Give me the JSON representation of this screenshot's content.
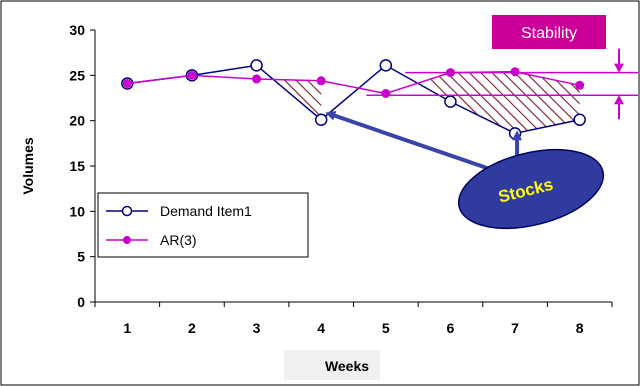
{
  "chart_data": {
    "type": "line",
    "categories": [
      "1",
      "2",
      "3",
      "4",
      "5",
      "6",
      "7",
      "8"
    ],
    "series": [
      {
        "name": "Demand Item1",
        "values": [
          24.1,
          25,
          26.1,
          20.1,
          26.1,
          22.1,
          18.6,
          20.1
        ],
        "color": "#000080",
        "marker": "circle-open"
      },
      {
        "name": "AR(3)",
        "values": [
          24.1,
          25,
          24.6,
          24.4,
          23,
          25.3,
          25.4,
          23.9
        ],
        "color": "#cc00cc",
        "marker": "circle-filled"
      }
    ],
    "xlabel": "Weeks",
    "ylabel": "Volumes",
    "ylim": [
      0,
      30
    ],
    "yticks": [
      0,
      5,
      10,
      15,
      20,
      25,
      30
    ],
    "grid": false,
    "legend": "bottom-left",
    "annotations": {
      "stability_label": "Stability",
      "stocks_label": "Stocks",
      "stability_levels": [
        25.3,
        22.8
      ],
      "stocks_targets": [
        {
          "x": 4,
          "y": 21.2
        },
        {
          "x": 7,
          "y": 19.6
        }
      ],
      "hatched_regions": [
        [
          3,
          4
        ],
        [
          5.7,
          8
        ]
      ]
    },
    "colors": {
      "demand": "#000080",
      "ar": "#cc00cc",
      "stability_box": "#cc0099",
      "stocks_fill": "#2f3b9e",
      "stocks_text": "#ffff00",
      "arrow": "#3a44a8",
      "hatch": "#7a1a2c",
      "callout_line": "#cc00cc"
    }
  }
}
